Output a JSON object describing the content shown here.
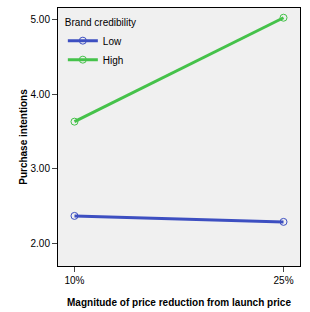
{
  "chart_data": {
    "type": "line",
    "x_label": "Magnitude of price reduction from launch price",
    "y_label": "Purchase intentions",
    "legend_title": "Brand credibility",
    "categories": [
      "10%",
      "25%"
    ],
    "series": [
      {
        "name": "Low",
        "color": "#3d4fc1",
        "values": [
          2.37,
          2.29
        ],
        "marker": "open circle"
      },
      {
        "name": "High",
        "color": "#45c24a",
        "values": [
          3.63,
          5.02
        ],
        "marker": "open circle"
      }
    ],
    "ylim": [
      1.7,
      5.15
    ],
    "yticks": [
      {
        "value": 2,
        "label": "2.00"
      },
      {
        "value": 3,
        "label": "3.00"
      },
      {
        "value": 4,
        "label": "4.00"
      },
      {
        "value": 5,
        "label": "5.00"
      }
    ],
    "grid": false,
    "legend": "upper left"
  }
}
